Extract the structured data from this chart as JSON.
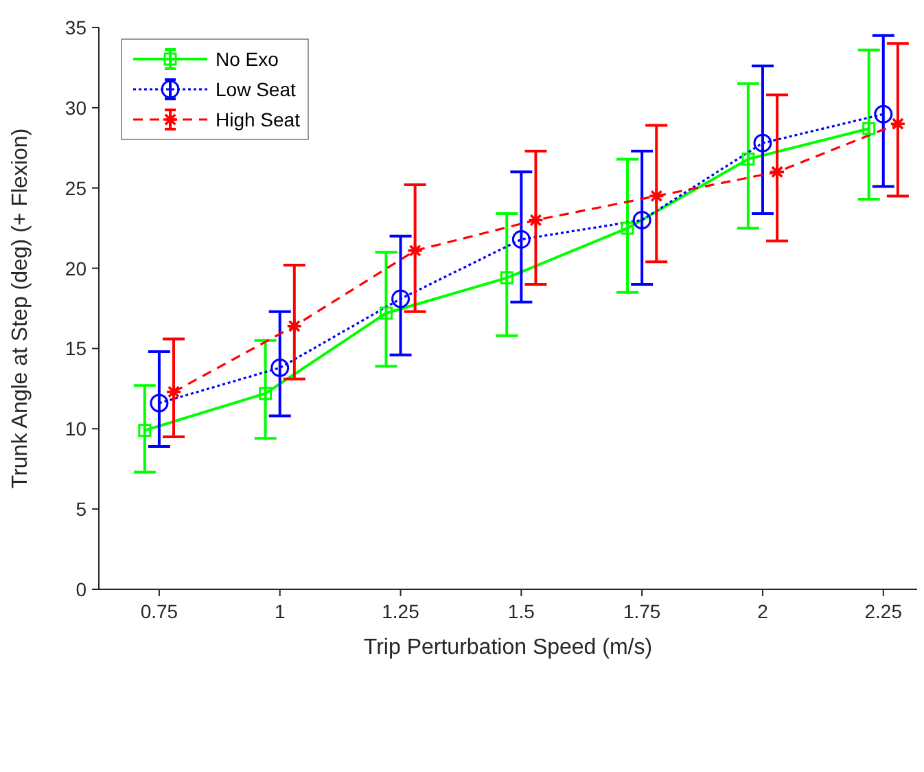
{
  "chart_data": {
    "type": "line",
    "xlabel": "Trip Perturbation Speed (m/s)",
    "ylabel": "Trunk Angle at Step (deg) (+ Flexion)",
    "xlim": [
      0.625,
      2.32
    ],
    "xticks": [
      0.75,
      1,
      1.25,
      1.5,
      1.75,
      2,
      2.25
    ],
    "ylim": [
      0,
      35
    ],
    "yticks": [
      0,
      5,
      10,
      15,
      20,
      25,
      30,
      35
    ],
    "grid": false,
    "legend": "top left",
    "series": [
      {
        "name": "No Exo",
        "color": "#00ff00",
        "marker": "square",
        "line_style": "solid",
        "x": [
          0.72,
          0.97,
          1.22,
          1.47,
          1.72,
          1.97,
          2.22
        ],
        "values": [
          9.9,
          12.2,
          17.2,
          19.4,
          22.5,
          26.8,
          28.7
        ],
        "errors": [
          [
            7.3,
            12.7
          ],
          [
            9.4,
            15.5
          ],
          [
            13.9,
            21
          ],
          [
            15.8,
            23.4
          ],
          [
            18.5,
            26.8
          ],
          [
            22.5,
            31.5
          ],
          [
            24.3,
            33.6
          ]
        ]
      },
      {
        "name": "Low Seat",
        "color": "#0000ff",
        "marker": "circle",
        "line_style": "dotted",
        "x": [
          0.75,
          1,
          1.25,
          1.5,
          1.75,
          2,
          2.25
        ],
        "values": [
          11.6,
          13.8,
          18.1,
          21.8,
          23,
          27.8,
          29.6
        ],
        "errors": [
          [
            8.9,
            14.8
          ],
          [
            10.8,
            17.3
          ],
          [
            14.6,
            22
          ],
          [
            17.9,
            26
          ],
          [
            19,
            27.3
          ],
          [
            23.4,
            32.6
          ],
          [
            25.1,
            34.5
          ]
        ]
      },
      {
        "name": "High Seat",
        "color": "#ff0000",
        "marker": "cross",
        "line_style": "dashed",
        "x": [
          0.78,
          1.03,
          1.28,
          1.53,
          1.78,
          2.03,
          2.28
        ],
        "values": [
          12.3,
          16.4,
          21.1,
          23,
          24.5,
          26,
          29
        ],
        "errors": [
          [
            9.5,
            15.6
          ],
          [
            13.1,
            20.2
          ],
          [
            17.3,
            25.2
          ],
          [
            19,
            27.3
          ],
          [
            20.4,
            28.9
          ],
          [
            21.7,
            30.8
          ],
          [
            24.5,
            34
          ]
        ]
      }
    ]
  }
}
